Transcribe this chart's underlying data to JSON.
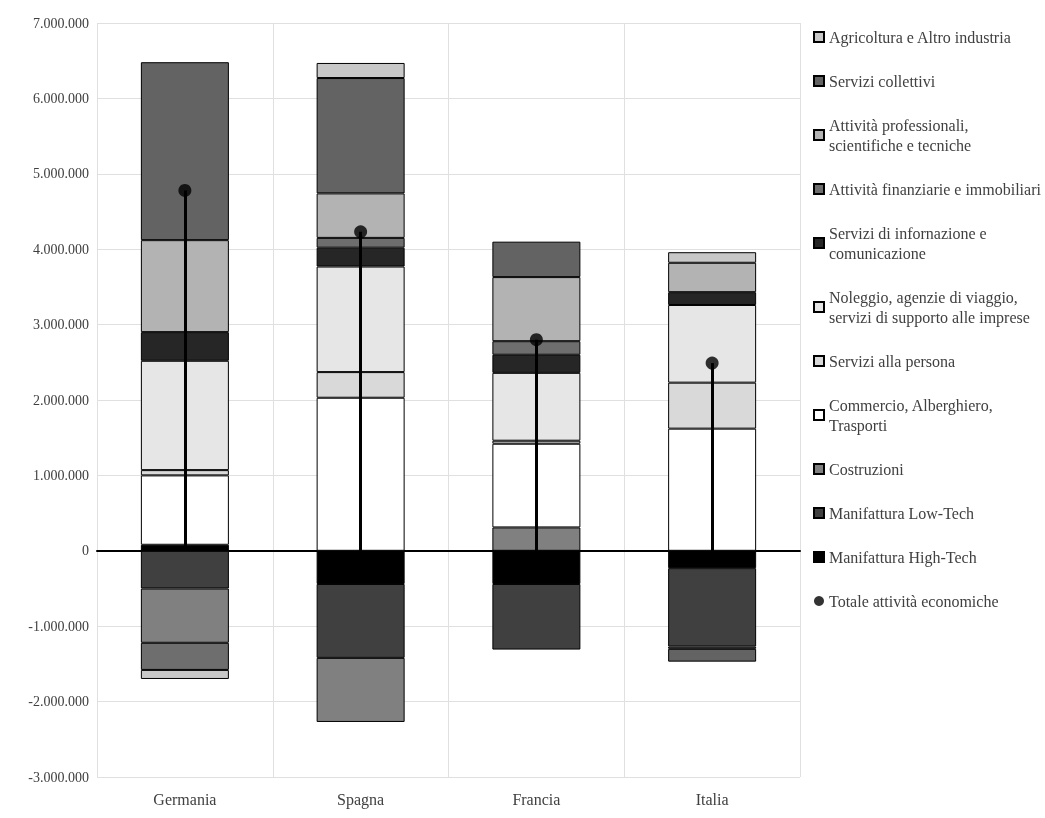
{
  "chart_data": {
    "type": "bar",
    "stacked": true,
    "categories": [
      "Germania",
      "Spagna",
      "Francia",
      "Italia"
    ],
    "ylim": [
      -3000000,
      7000000
    ],
    "yticks": [
      {
        "value": -3000000,
        "label": "-3.000.000"
      },
      {
        "value": -2000000,
        "label": "-2.000.000"
      },
      {
        "value": -1000000,
        "label": "-1.000.000"
      },
      {
        "value": 0,
        "label": "0"
      },
      {
        "value": 1000000,
        "label": "1.000.000"
      },
      {
        "value": 2000000,
        "label": "2.000.000"
      },
      {
        "value": 3000000,
        "label": "3.000.000"
      },
      {
        "value": 4000000,
        "label": "4.000.000"
      },
      {
        "value": 5000000,
        "label": "5.000.000"
      },
      {
        "value": 6000000,
        "label": "6.000.000"
      },
      {
        "value": 7000000,
        "label": "7.000.000"
      }
    ],
    "grid": true,
    "legend": "right",
    "series": [
      {
        "name": "Manifattura High-Tech",
        "color": "#000000",
        "values": [
          80000,
          -440000,
          -440000,
          -230000
        ]
      },
      {
        "name": "Manifattura Low-Tech",
        "color": "#404040",
        "values": [
          -500000,
          -980000,
          -870000,
          -1040000
        ]
      },
      {
        "name": "Costruzioni",
        "color": "#808080",
        "values": [
          -720000,
          -850000,
          310000,
          null
        ]
      },
      {
        "name": "Commercio, Alberghiero, Trasporti",
        "color": "#ffffff",
        "values": [
          920000,
          2030000,
          1110000,
          1620000
        ]
      },
      {
        "name": "Servizi alla persona",
        "color": "#d9d9d9",
        "values": [
          70000,
          340000,
          40000,
          610000
        ]
      },
      {
        "name": "Noleggio, agenzie di viaggio, servizi di supporto alle imprese",
        "color": "#e6e6e6",
        "values": [
          1450000,
          1400000,
          900000,
          1030000
        ]
      },
      {
        "name": "Servizi di infornazione e comunicazione",
        "color": "#262626",
        "values": [
          380000,
          250000,
          240000,
          170000
        ]
      },
      {
        "name": "Attività finanziarie e immobiliari",
        "color": "#6e6e6e",
        "values": [
          -360000,
          130000,
          180000,
          -30000
        ]
      },
      {
        "name": "Attività professionali, scientifiche e tecniche",
        "color": "#b3b3b3",
        "values": [
          1220000,
          590000,
          850000,
          390000
        ]
      },
      {
        "name": "Servizi collettivi",
        "color": "#636363",
        "values": [
          2360000,
          1530000,
          470000,
          -170000
        ]
      },
      {
        "name": "Agricoltura e Altro industria",
        "color": "#c8c8c8",
        "values": [
          -120000,
          200000,
          null,
          140000
        ]
      },
      {
        "name": "Totale attività economiche",
        "type": "lollipop",
        "color": "#000000",
        "marker": "circle",
        "values": [
          4780000,
          4230000,
          2800000,
          2490000
        ]
      }
    ]
  }
}
